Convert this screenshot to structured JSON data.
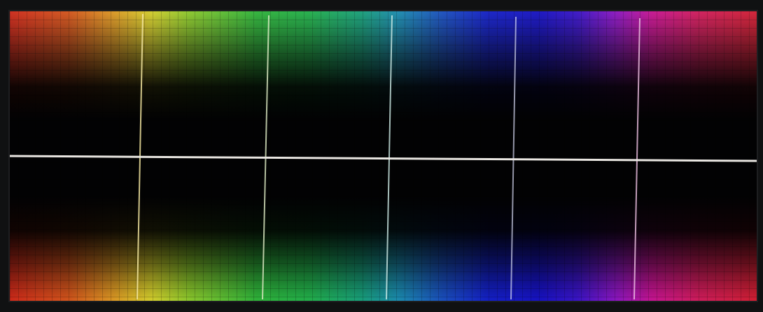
{
  "display": {
    "description_colors": {
      "red": "#d02a1a",
      "yellow": "#d4cf2c",
      "green": "#22b04a",
      "cyan": "#1b8cb0",
      "blue": "#1420c8",
      "violet": "#8a16c2",
      "magenta": "#c81492"
    },
    "marker_colors": [
      "#f3e6a0",
      "#e2f0c8",
      "#cfeee9",
      "#d3d6f0",
      "#f1c3e6"
    ],
    "horizontal_line_color": "#e9e6e1"
  }
}
